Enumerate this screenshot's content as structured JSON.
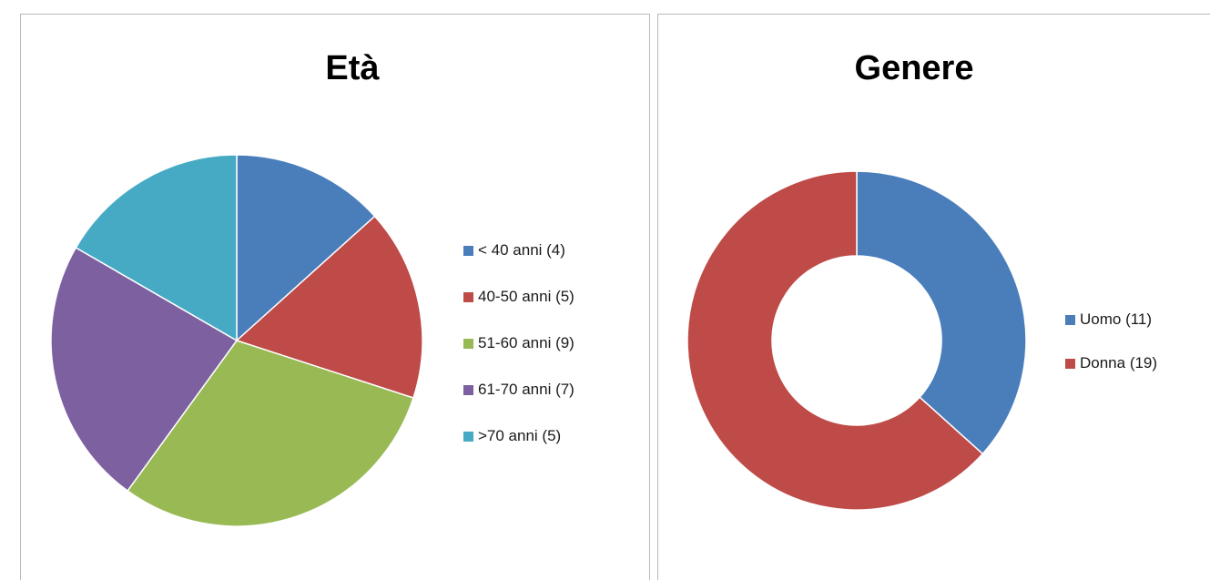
{
  "chart_data": [
    {
      "type": "pie",
      "title": "Età",
      "categories": [
        "< 40 anni (4)",
        "40-50 anni (5)",
        "51-60 anni (9)",
        "61-70 anni (7)",
        ">70 anni (5)"
      ],
      "values": [
        4,
        5,
        9,
        7,
        5
      ],
      "colors": [
        "#4a7ebb",
        "#be4b48",
        "#98b954",
        "#7d60a0",
        "#46aac4"
      ],
      "legend_position": "right"
    },
    {
      "type": "pie",
      "variant": "doughnut",
      "title": "Genere",
      "categories": [
        "Uomo (11)",
        "Donna (19)"
      ],
      "values": [
        11,
        19
      ],
      "colors": [
        "#4a7ebb",
        "#be4b48"
      ],
      "legend_position": "right"
    }
  ]
}
